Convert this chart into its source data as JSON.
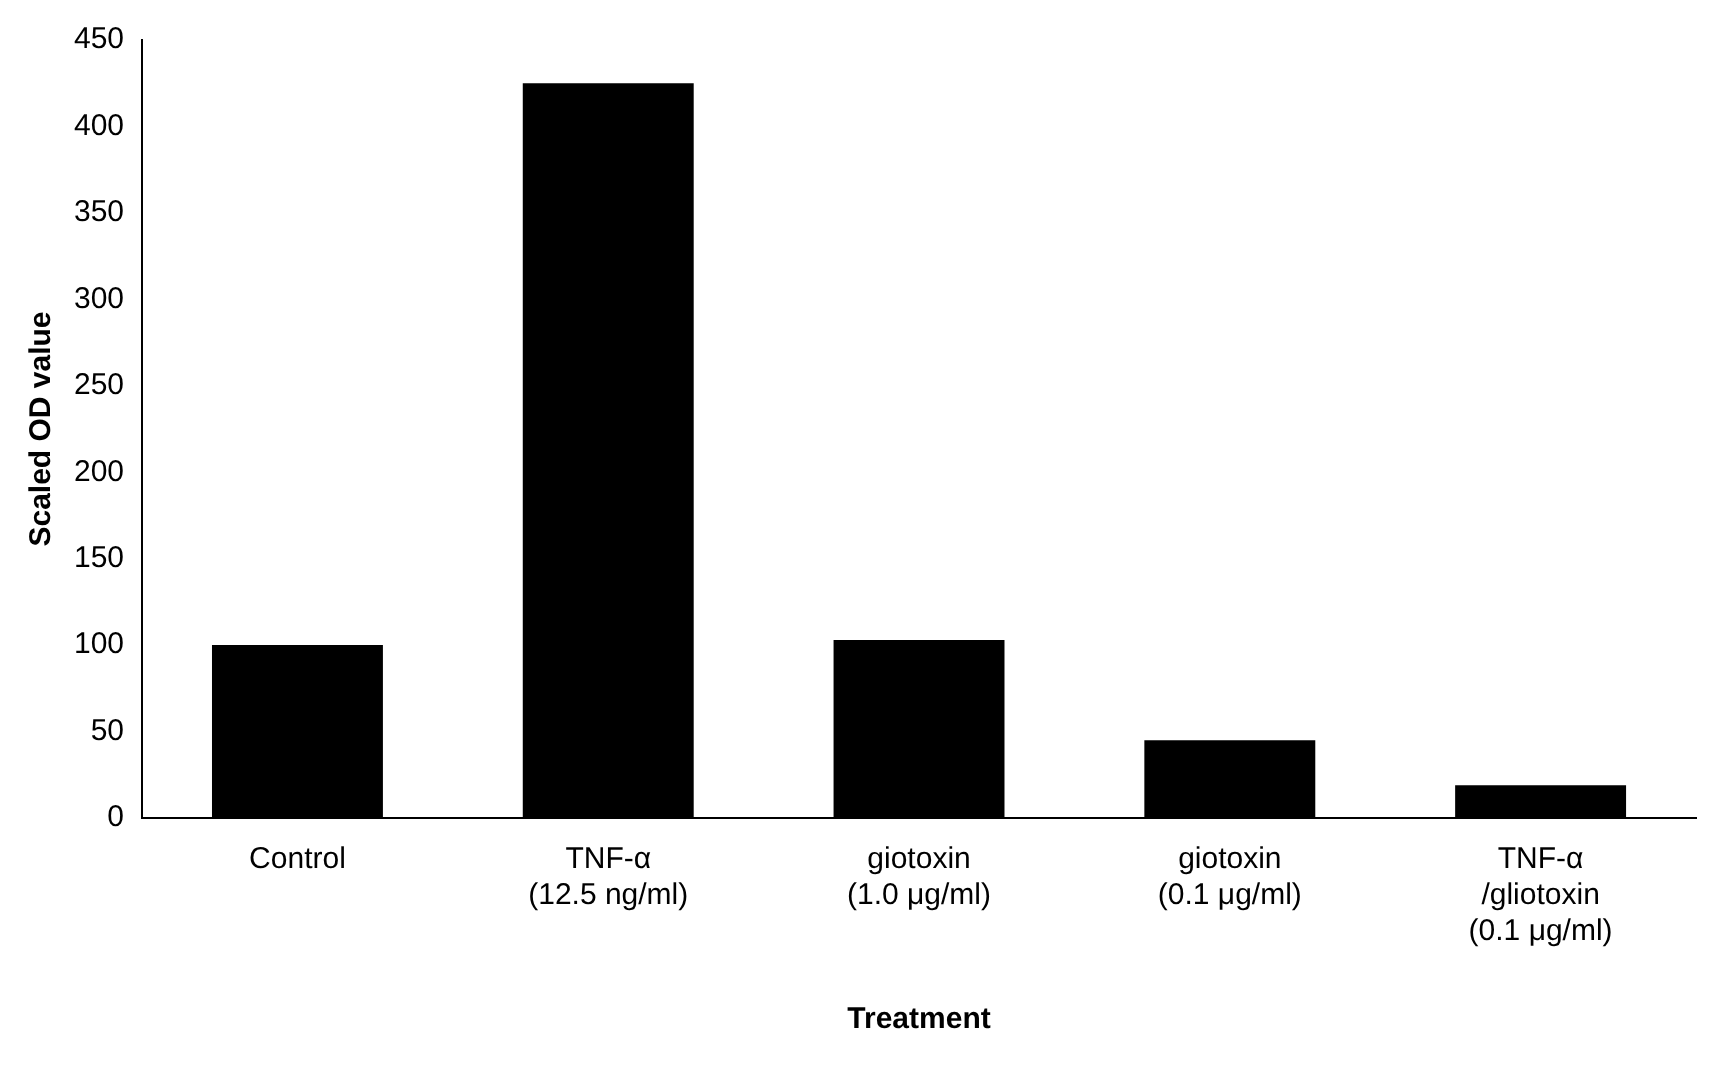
{
  "chart_data": {
    "type": "bar",
    "xlabel": "Treatment",
    "ylabel": "Scaled OD value",
    "categories": [
      "Control",
      "TNF-α\n(12.5 ng/ml)",
      "giotoxin\n(1.0 μg/ml)",
      "giotoxin\n(0.1 μg/ml)",
      "TNF-α\n/gliotoxin\n(0.1 μg/ml)"
    ],
    "values": [
      100,
      425,
      103,
      45,
      19
    ],
    "color": "#000000",
    "ylim": [
      0,
      450
    ],
    "yticks": [
      0,
      50,
      100,
      150,
      200,
      250,
      300,
      350,
      400,
      450
    ],
    "grid": false,
    "legend": false
  }
}
